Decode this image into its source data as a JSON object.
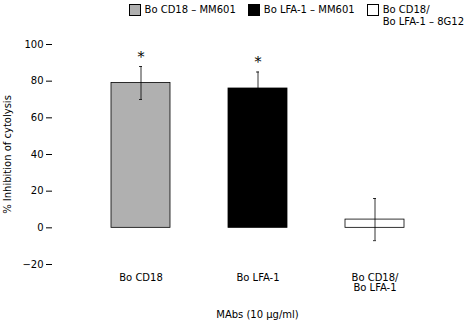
{
  "chart_data": {
    "type": "bar",
    "categories": [
      "Bo CD18",
      "Bo LFA-1",
      "Bo CD18/\nBo LFA-1"
    ],
    "values": [
      79.0,
      76.0,
      4.5
    ],
    "errors": [
      9.0,
      9.0,
      11.5
    ],
    "colors": [
      "#b0b0b0",
      "#000000",
      "#ffffff"
    ],
    "ylim": [
      -20,
      100
    ],
    "yticks": [
      -20,
      0,
      20,
      40,
      60,
      80,
      100
    ],
    "ylabel": "% Inhibition of cytolysis",
    "xlabel": "MAbs (10 μg/ml)",
    "grid": false,
    "legend": "top",
    "legend_labels": [
      "Bo CD18 – MM601",
      "Bo LFA-1 – MM601",
      "Bo CD18/\nBo LFA-1 – 8G12"
    ],
    "annotations": [
      {
        "category": "Bo CD18",
        "text": "*"
      },
      {
        "category": "Bo LFA-1",
        "text": "*"
      }
    ]
  }
}
